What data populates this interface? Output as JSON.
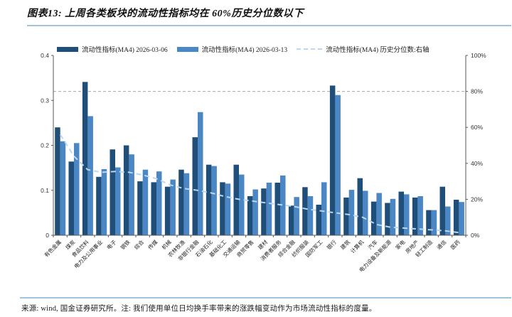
{
  "title": "图表13: 上周各类板块的流动性指标均在 60%历史分位数以下",
  "footnote": "来源: wind, 国金证券研究所。注: 我们使用单位日均换手率带来的涨跌幅变动作为市场流动性指标的度量。",
  "legend": [
    {
      "label": "流动性指标(MA4) 2026-03-06",
      "type": "bar",
      "color": "#1f4e79"
    },
    {
      "label": "流动性指标(MA4) 2026-03-13",
      "type": "bar",
      "color": "#4c87c5"
    },
    {
      "label": "流动性指标(MA4) 历史分位数:右轴",
      "type": "dashed-line",
      "color": "#bdd7ee"
    }
  ],
  "chart_data": {
    "type": "bar",
    "subtype": "grouped bars with dashed percentile line on secondary axis",
    "categories": [
      "有色金属",
      "煤炭",
      "食品饮料",
      "电力及公用事业",
      "电子",
      "钢铁",
      "综合",
      "传媒",
      "机械",
      "农林牧渔",
      "非银行金融",
      "石油石化",
      "基础化工",
      "交通运输",
      "商贸零售",
      "建材",
      "消费者服务",
      "综合金融",
      "纺织服装",
      "国防军工",
      "银行",
      "建筑",
      "计算机",
      "汽车",
      "电力设备及新能源",
      "家电",
      "房地产",
      "轻工制造",
      "通信",
      "医药"
    ],
    "series": [
      {
        "name": "流动性指标(MA4) 2026-03-06",
        "type": "bar",
        "axis": "left",
        "color": "#1f4e79",
        "values": [
          0.24,
          0.164,
          0.341,
          0.13,
          0.191,
          0.2,
          0.12,
          0.118,
          0.108,
          0.146,
          0.218,
          0.157,
          0.118,
          0.157,
          0.087,
          0.104,
          0.117,
          0.066,
          0.107,
          0.068,
          0.333,
          0.084,
          0.127,
          0.075,
          0.072,
          0.097,
          0.084,
          0.056,
          0.108,
          0.079
        ]
      },
      {
        "name": "流动性指标(MA4) 2026-03-13",
        "type": "bar",
        "axis": "left",
        "color": "#4c87c5",
        "values": [
          0.209,
          0.205,
          0.265,
          0.147,
          0.151,
          0.18,
          0.146,
          0.142,
          0.124,
          0.138,
          0.274,
          0.154,
          0.115,
          0.135,
          0.102,
          0.117,
          0.133,
          0.085,
          0.087,
          0.118,
          0.312,
          0.101,
          0.099,
          0.094,
          0.081,
          0.091,
          0.087,
          0.056,
          0.064,
          0.074
        ]
      },
      {
        "name": "流动性指标(MA4) 历史分位数:右轴",
        "type": "line",
        "axis": "right",
        "color": "#bdd7ee",
        "dashed": true,
        "values": [
          56,
          44,
          36.5,
          35,
          35.5,
          35,
          33.5,
          31.5,
          28,
          26,
          25,
          23.5,
          21.5,
          20,
          19,
          18,
          17,
          16,
          14.5,
          13.5,
          12.5,
          11.5,
          10,
          6,
          4.5,
          4,
          3.5,
          3,
          2.5,
          1.5
        ]
      }
    ],
    "left_axis": {
      "min": 0,
      "max": 0.4,
      "tick_labels": [
        "0",
        "0.1",
        "0.2",
        "0.3",
        "0.4"
      ],
      "tick_values": [
        0,
        0.1,
        0.2,
        0.3,
        0.4
      ]
    },
    "right_axis": {
      "min": 0,
      "max": 100,
      "tick_labels": [
        "0%",
        "20%",
        "40%",
        "60%",
        "80%",
        "100%"
      ],
      "tick_values": [
        0,
        20,
        40,
        60,
        80,
        100
      ]
    },
    "reference_line": {
      "axis": "right",
      "value": 80,
      "style": "dashed",
      "color": "#a6a6a6"
    },
    "grid": "off",
    "legend_position": "top"
  }
}
